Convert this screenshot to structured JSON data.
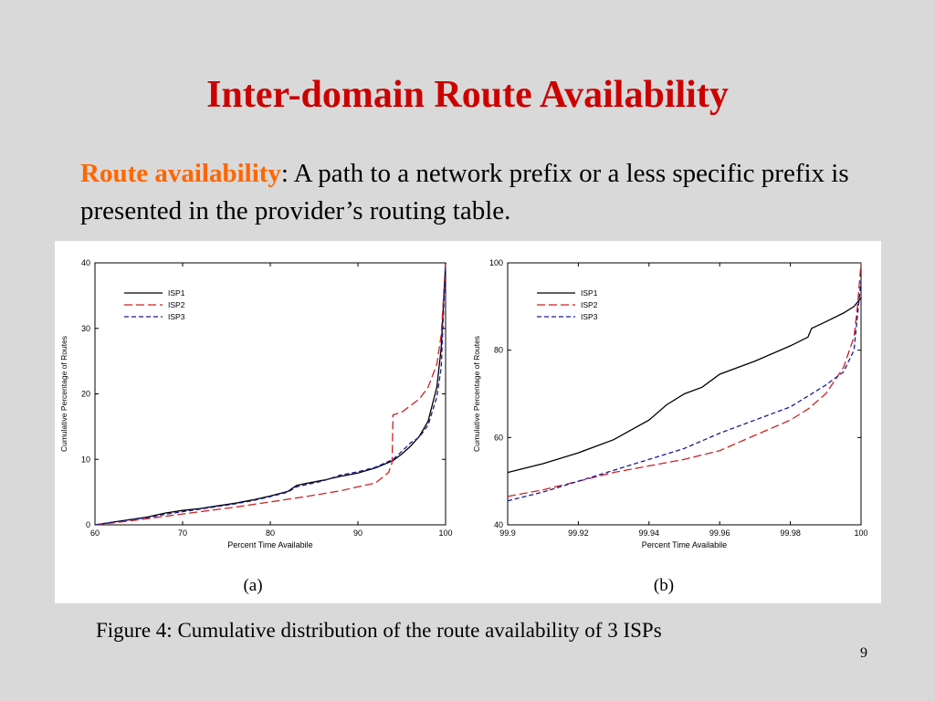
{
  "slide": {
    "title": "Inter-domain Route Availability",
    "definition_term": "Route availability",
    "definition_text": ": A path to a network prefix or a less specific prefix is presented in the provider’s routing table.",
    "caption": "Figure 4: Cumulative distribution of the route availability of 3 ISPs",
    "page_number": "9"
  },
  "colors": {
    "title": "#cc0000",
    "term": "#ff6600",
    "background": "#d9d9d9",
    "ISP1": "#000000",
    "ISP2": "#cc2222",
    "ISP3": "#1a1a99"
  },
  "chart_data": [
    {
      "type": "line",
      "panel_label": "(a)",
      "xlabel": "Percent Time Availabile",
      "ylabel": "Cumulative Percentage of Routes",
      "xlim": [
        60,
        100
      ],
      "ylim": [
        0,
        40
      ],
      "xticks": [
        "60",
        "70",
        "80",
        "90",
        "100"
      ],
      "yticks": [
        "0",
        "10",
        "20",
        "30",
        "40"
      ],
      "legend_position": "top-left",
      "grid": false,
      "series": [
        {
          "name": "ISP1",
          "style": "solid",
          "x": [
            60,
            62,
            64,
            66,
            68,
            70,
            72,
            74,
            76,
            78,
            80,
            82,
            83,
            84,
            86,
            88,
            90,
            92,
            94,
            95,
            96,
            97,
            98,
            99,
            99.5,
            100
          ],
          "y": [
            0,
            0.4,
            0.8,
            1.2,
            1.8,
            2.2,
            2.5,
            2.9,
            3.3,
            3.8,
            4.4,
            5.1,
            6,
            6.3,
            6.8,
            7.4,
            7.9,
            8.7,
            9.8,
            10.8,
            12,
            13.5,
            15.8,
            21,
            27,
            40
          ]
        },
        {
          "name": "ISP2",
          "style": "dashed",
          "x": [
            60,
            64,
            68,
            72,
            76,
            80,
            84,
            88,
            92,
            93.5,
            93.9,
            94,
            95,
            96,
            97,
            98,
            99,
            99.5,
            100
          ],
          "y": [
            0,
            0.6,
            1.3,
            2,
            2.7,
            3.5,
            4.3,
            5.2,
            6.4,
            8,
            9.5,
            16.8,
            17.2,
            18.2,
            19.2,
            21,
            24.5,
            29,
            40
          ]
        },
        {
          "name": "ISP3",
          "style": "dashed",
          "x": [
            60,
            62,
            64,
            66,
            68,
            70,
            72,
            74,
            76,
            78,
            80,
            82,
            83,
            84,
            86,
            88,
            90,
            92,
            94,
            95,
            96,
            97,
            98,
            99,
            99.5,
            100
          ],
          "y": [
            0,
            0.4,
            0.8,
            1.1,
            1.6,
            2.0,
            2.4,
            2.8,
            3.2,
            3.7,
            4.3,
            5.0,
            5.8,
            6.1,
            6.7,
            7.6,
            8.1,
            8.8,
            10.0,
            11.2,
            12.5,
            13.4,
            15.2,
            19.5,
            24,
            40
          ]
        }
      ]
    },
    {
      "type": "line",
      "panel_label": "(b)",
      "xlabel": "Percent Time Availabile",
      "ylabel": "Cumulative Percentage of Routes",
      "xlim": [
        99.9,
        100
      ],
      "ylim": [
        40,
        100
      ],
      "xticks": [
        "99.9",
        "99.92",
        "99.94",
        "99.96",
        "99.98",
        "100"
      ],
      "yticks": [
        "40",
        "60",
        "80",
        "100"
      ],
      "legend_position": "top-left",
      "grid": false,
      "series": [
        {
          "name": "ISP1",
          "style": "solid",
          "x": [
            99.9,
            99.91,
            99.92,
            99.93,
            99.94,
            99.945,
            99.95,
            99.955,
            99.96,
            99.97,
            99.98,
            99.985,
            99.986,
            99.99,
            99.995,
            99.998,
            100
          ],
          "y": [
            52,
            54,
            56.5,
            59.5,
            64,
            67.5,
            70,
            71.5,
            74.5,
            77.5,
            81,
            83,
            85,
            86.5,
            88.5,
            90,
            92
          ]
        },
        {
          "name": "ISP2",
          "style": "dashed",
          "x": [
            99.9,
            99.91,
            99.92,
            99.93,
            99.94,
            99.95,
            99.96,
            99.97,
            99.98,
            99.985,
            99.99,
            99.995,
            99.998,
            99.999,
            100
          ],
          "y": [
            46.5,
            48,
            50,
            52,
            53.5,
            55,
            57,
            60.5,
            64,
            66.5,
            70,
            76,
            83,
            90,
            100
          ]
        },
        {
          "name": "ISP3",
          "style": "dashed",
          "x": [
            99.9,
            99.91,
            99.92,
            99.93,
            99.94,
            99.95,
            99.96,
            99.97,
            99.98,
            99.99,
            99.995,
            99.998,
            100
          ],
          "y": [
            45.5,
            47.5,
            50,
            52.5,
            55,
            57.5,
            61,
            64,
            67,
            72,
            75,
            80,
            96
          ]
        }
      ]
    }
  ]
}
